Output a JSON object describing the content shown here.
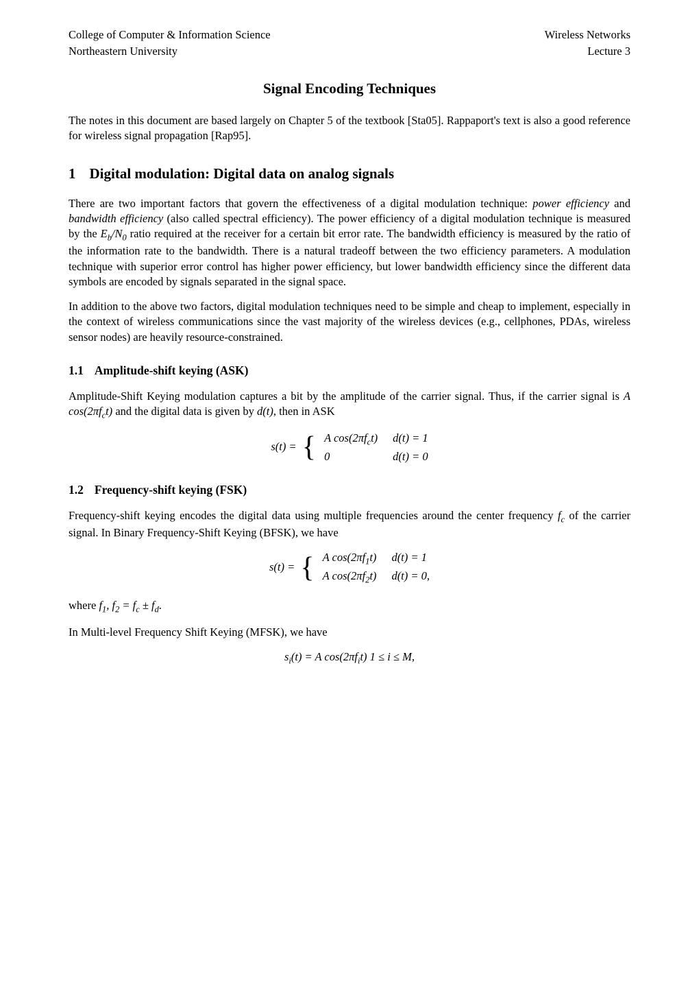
{
  "header": {
    "top_left_1": "College of Computer & Information Science",
    "top_left_2": "Northeastern University",
    "top_right_1": "Wireless Networks",
    "top_right_2": "Lecture 3"
  },
  "title": "Signal Encoding Techniques",
  "intro": "The notes in this document are based largely on Chapter 5 of the textbook [Sta05]. Rappaport's text is also a good reference for wireless signal propagation [Rap95].",
  "s1": {
    "num": "1",
    "heading": "Digital modulation: Digital data on analog signals",
    "p1_a": "There are two important factors that govern the effectiveness of a digital modulation technique: ",
    "p1_b": "power efficiency",
    "p1_c": " and ",
    "p1_d": "bandwidth efficiency",
    "p1_e": " (also called spectral efficiency). The power efficiency of a digital modulation technique is measured by the ",
    "p1_f": " ratio required at the receiver for a certain bit error rate. The bandwidth efficiency is measured by the ratio of the information rate to the bandwidth. There is a natural tradeoff between the two efficiency parameters. A modulation technique with superior error control has higher power efficiency, but lower bandwidth efficiency since the different data symbols are encoded by signals separated in the signal space.",
    "p2": "In addition to the above two factors, digital modulation techniques need to be simple and cheap to implement, especially in the context of wireless communications since the vast majority of the wireless devices (e.g., cellphones, PDAs, wireless sensor nodes) are heavily resource-constrained."
  },
  "s11": {
    "num": "1.1",
    "heading": "Amplitude-shift keying (ASK)",
    "p1_a": "Amplitude-Shift Keying modulation captures a bit by the amplitude of the carrier signal. Thus, if the carrier signal is ",
    "p1_b": " and the digital data is given by ",
    "p1_c": ", then in ASK",
    "eq": {
      "lhs": "s(t) = ",
      "row1_l": "A cos(2πf_c t)",
      "row1_r": "d(t) = 1",
      "row2_l": "0",
      "row2_r": "d(t) = 0"
    }
  },
  "s12": {
    "num": "1.2",
    "heading": "Frequency-shift keying (FSK)",
    "p1_a": "Frequency-shift keying encodes the digital data using multiple frequencies around the center frequency ",
    "p1_b": " of the carrier signal. In Binary Frequency-Shift Keying (BFSK), we have",
    "eq1": {
      "row1_r": "d(t) = 1",
      "row2_r": "d(t) = 0,"
    },
    "p2_a": "where ",
    "p2_b": ".",
    "p3": "In Multi-level Frequency Shift Keying (MFSK), we have",
    "eq2_tail": " 1 ≤ i ≤ M,"
  }
}
